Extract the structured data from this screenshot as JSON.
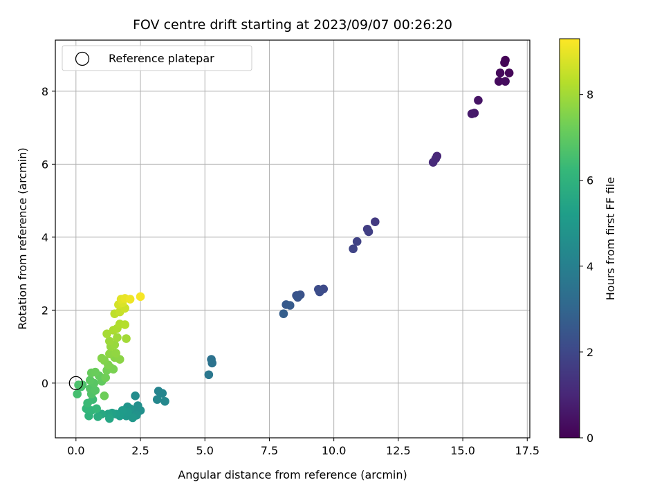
{
  "chart_data": {
    "type": "scatter",
    "title": "FOV centre drift starting at 2023/09/07 00:26:20",
    "xlabel": "Angular distance from reference (arcmin)",
    "ylabel": "Rotation from reference (arcmin)",
    "xlim": [
      -0.8,
      17.6
    ],
    "ylim": [
      -1.5,
      9.4
    ],
    "x_ticks": [
      0.0,
      2.5,
      5.0,
      7.5,
      10.0,
      12.5,
      15.0,
      17.5
    ],
    "x_tick_labels": [
      "0.0",
      "2.5",
      "5.0",
      "7.5",
      "10.0",
      "12.5",
      "15.0",
      "17.5"
    ],
    "y_ticks": [
      0,
      2,
      4,
      6,
      8
    ],
    "y_tick_labels": [
      "0",
      "2",
      "4",
      "6",
      "8"
    ],
    "grid": true,
    "legend": {
      "placement": "upper-left",
      "entries": [
        "Reference platepar"
      ]
    },
    "reference_point": {
      "x": 0.0,
      "y": 0.0
    },
    "colorbar": {
      "label": "Hours from first FF file",
      "colormap": "viridis",
      "range": [
        0,
        9.3
      ],
      "ticks": [
        0,
        2,
        4,
        6,
        8
      ],
      "tick_labels": [
        "0",
        "2",
        "4",
        "6",
        "8"
      ]
    },
    "colors": {
      "viridis": [
        "#440154",
        "#482878",
        "#3e4989",
        "#31688e",
        "#26828e",
        "#1f9e89",
        "#35b779",
        "#6ece58",
        "#b5de2b",
        "#fde725"
      ],
      "grid": "#b0b0b0",
      "axis": "#000000"
    },
    "points": [
      {
        "x": 16.65,
        "y": 8.85,
        "t": 0.05
      },
      {
        "x": 16.62,
        "y": 8.78,
        "t": 0.1
      },
      {
        "x": 16.8,
        "y": 8.5,
        "t": 0.15
      },
      {
        "x": 16.45,
        "y": 8.5,
        "t": 0.2
      },
      {
        "x": 16.4,
        "y": 8.27,
        "t": 0.25
      },
      {
        "x": 16.65,
        "y": 8.27,
        "t": 0.3
      },
      {
        "x": 15.6,
        "y": 7.75,
        "t": 0.5
      },
      {
        "x": 15.45,
        "y": 7.4,
        "t": 0.6
      },
      {
        "x": 15.35,
        "y": 7.38,
        "t": 0.65
      },
      {
        "x": 14.0,
        "y": 6.22,
        "t": 1.0
      },
      {
        "x": 13.95,
        "y": 6.15,
        "t": 1.05
      },
      {
        "x": 13.85,
        "y": 6.05,
        "t": 1.1
      },
      {
        "x": 11.6,
        "y": 4.42,
        "t": 1.6
      },
      {
        "x": 11.3,
        "y": 4.22,
        "t": 1.7
      },
      {
        "x": 11.35,
        "y": 4.15,
        "t": 1.75
      },
      {
        "x": 10.9,
        "y": 3.88,
        "t": 1.85
      },
      {
        "x": 10.75,
        "y": 3.68,
        "t": 1.9
      },
      {
        "x": 9.6,
        "y": 2.58,
        "t": 2.1
      },
      {
        "x": 9.4,
        "y": 2.57,
        "t": 2.15
      },
      {
        "x": 9.45,
        "y": 2.5,
        "t": 2.2
      },
      {
        "x": 8.7,
        "y": 2.42,
        "t": 2.35
      },
      {
        "x": 8.55,
        "y": 2.4,
        "t": 2.4
      },
      {
        "x": 8.6,
        "y": 2.35,
        "t": 2.45
      },
      {
        "x": 8.15,
        "y": 2.15,
        "t": 2.6
      },
      {
        "x": 8.3,
        "y": 2.13,
        "t": 2.65
      },
      {
        "x": 8.05,
        "y": 1.9,
        "t": 2.75
      },
      {
        "x": 5.25,
        "y": 0.65,
        "t": 3.5
      },
      {
        "x": 5.28,
        "y": 0.55,
        "t": 3.55
      },
      {
        "x": 5.15,
        "y": 0.23,
        "t": 3.7
      },
      {
        "x": 3.2,
        "y": -0.22,
        "t": 4.2
      },
      {
        "x": 3.35,
        "y": -0.28,
        "t": 4.25
      },
      {
        "x": 3.15,
        "y": -0.45,
        "t": 4.3
      },
      {
        "x": 3.45,
        "y": -0.5,
        "t": 4.35
      },
      {
        "x": 2.3,
        "y": -0.35,
        "t": 4.5
      },
      {
        "x": 2.4,
        "y": -0.62,
        "t": 4.6
      },
      {
        "x": 2.5,
        "y": -0.75,
        "t": 4.65
      },
      {
        "x": 2.2,
        "y": -0.75,
        "t": 4.7
      },
      {
        "x": 2.35,
        "y": -0.88,
        "t": 4.75
      },
      {
        "x": 2.1,
        "y": -0.7,
        "t": 4.8
      },
      {
        "x": 2.0,
        "y": -0.65,
        "t": 4.85
      },
      {
        "x": 2.2,
        "y": -0.95,
        "t": 4.9
      },
      {
        "x": 1.95,
        "y": -0.9,
        "t": 4.95
      },
      {
        "x": 2.0,
        "y": -0.8,
        "t": 5.0
      },
      {
        "x": 1.8,
        "y": -0.75,
        "t": 5.05
      },
      {
        "x": 1.7,
        "y": -0.9,
        "t": 5.1
      },
      {
        "x": 1.55,
        "y": -0.85,
        "t": 5.2
      },
      {
        "x": 1.4,
        "y": -0.82,
        "t": 5.3
      },
      {
        "x": 1.25,
        "y": -0.85,
        "t": 5.4
      },
      {
        "x": 1.3,
        "y": -0.97,
        "t": 5.5
      },
      {
        "x": 1.0,
        "y": -0.85,
        "t": 5.6
      },
      {
        "x": 0.85,
        "y": -0.92,
        "t": 5.8
      },
      {
        "x": 0.5,
        "y": -0.9,
        "t": 6.0
      },
      {
        "x": 0.6,
        "y": -0.75,
        "t": 6.1
      },
      {
        "x": 0.4,
        "y": -0.7,
        "t": 6.15
      },
      {
        "x": 0.8,
        "y": -0.7,
        "t": 6.2
      },
      {
        "x": 0.45,
        "y": -0.55,
        "t": 6.3
      },
      {
        "x": 0.65,
        "y": -0.45,
        "t": 6.35
      },
      {
        "x": 0.05,
        "y": -0.3,
        "t": 6.5
      },
      {
        "x": 0.2,
        "y": -0.1,
        "t": 6.55
      },
      {
        "x": 0.1,
        "y": -0.05,
        "t": 6.6
      },
      {
        "x": 0.25,
        "y": -0.05,
        "t": 6.65
      },
      {
        "x": 0.6,
        "y": -0.3,
        "t": 6.7
      },
      {
        "x": 0.55,
        "y": -0.15,
        "t": 6.75
      },
      {
        "x": 0.75,
        "y": -0.2,
        "t": 6.8
      },
      {
        "x": 0.7,
        "y": 0.0,
        "t": 6.85
      },
      {
        "x": 0.55,
        "y": 0.08,
        "t": 6.9
      },
      {
        "x": 1.0,
        "y": 0.05,
        "t": 7.0
      },
      {
        "x": 0.9,
        "y": 0.2,
        "t": 7.05
      },
      {
        "x": 0.6,
        "y": 0.28,
        "t": 7.1
      },
      {
        "x": 0.75,
        "y": 0.3,
        "t": 7.15
      },
      {
        "x": 1.1,
        "y": -0.35,
        "t": 7.2
      },
      {
        "x": 1.15,
        "y": 0.15,
        "t": 7.25
      },
      {
        "x": 1.2,
        "y": 0.35,
        "t": 7.3
      },
      {
        "x": 1.35,
        "y": 0.42,
        "t": 7.35
      },
      {
        "x": 1.45,
        "y": 0.38,
        "t": 7.4
      },
      {
        "x": 1.25,
        "y": 0.5,
        "t": 7.45
      },
      {
        "x": 1.1,
        "y": 0.62,
        "t": 7.5
      },
      {
        "x": 1.0,
        "y": 0.68,
        "t": 7.55
      },
      {
        "x": 1.5,
        "y": 0.7,
        "t": 7.6
      },
      {
        "x": 1.7,
        "y": 0.65,
        "t": 7.65
      },
      {
        "x": 1.3,
        "y": 0.8,
        "t": 7.7
      },
      {
        "x": 1.55,
        "y": 0.82,
        "t": 7.75
      },
      {
        "x": 1.35,
        "y": 1.0,
        "t": 7.8
      },
      {
        "x": 1.5,
        "y": 1.05,
        "t": 7.85
      },
      {
        "x": 1.3,
        "y": 1.15,
        "t": 7.9
      },
      {
        "x": 1.6,
        "y": 1.25,
        "t": 7.95
      },
      {
        "x": 1.95,
        "y": 1.22,
        "t": 8.0
      },
      {
        "x": 1.2,
        "y": 1.35,
        "t": 8.05
      },
      {
        "x": 1.45,
        "y": 1.45,
        "t": 8.1
      },
      {
        "x": 1.6,
        "y": 1.5,
        "t": 8.15
      },
      {
        "x": 1.7,
        "y": 1.62,
        "t": 8.2
      },
      {
        "x": 1.9,
        "y": 1.6,
        "t": 8.25
      },
      {
        "x": 1.5,
        "y": 1.9,
        "t": 8.4
      },
      {
        "x": 1.7,
        "y": 1.95,
        "t": 8.5
      },
      {
        "x": 1.9,
        "y": 2.05,
        "t": 8.6
      },
      {
        "x": 1.65,
        "y": 2.15,
        "t": 8.7
      },
      {
        "x": 1.8,
        "y": 2.2,
        "t": 8.8
      },
      {
        "x": 1.75,
        "y": 2.3,
        "t": 8.9
      },
      {
        "x": 1.9,
        "y": 2.32,
        "t": 9.0
      },
      {
        "x": 2.1,
        "y": 2.3,
        "t": 9.1
      },
      {
        "x": 2.5,
        "y": 2.37,
        "t": 9.2
      }
    ]
  }
}
